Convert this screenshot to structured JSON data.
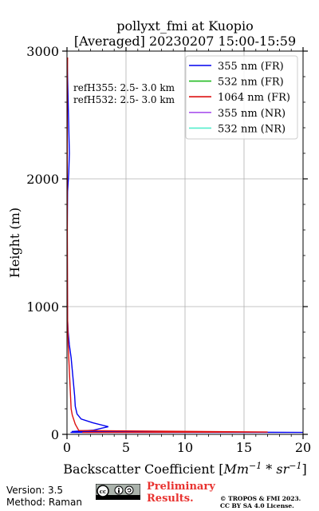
{
  "chart_data": {
    "type": "line",
    "title": "pollyxt_fmi at Kuopio",
    "subtitle": "[Averaged] 20230207 15:00-15:59",
    "xlabel": "Backscatter Coefficient [Mm⁻¹ * sr⁻¹]",
    "ylabel": "Height (m)",
    "xlim": [
      0,
      20
    ],
    "ylim": [
      0,
      3000
    ],
    "xticks": [
      "0",
      "5",
      "10",
      "15",
      "20"
    ],
    "yticks": [
      "0",
      "1000",
      "2000",
      "3000"
    ],
    "grid": true,
    "legend_position": "top-right",
    "annotations": [
      "refH355:  2.5- 3.0 km",
      "refH532:  2.5- 3.0 km"
    ],
    "series": [
      {
        "name": "355 nm (FR)",
        "color": "#0000ee",
        "points": [
          [
            0.3,
            15
          ],
          [
            20,
            15
          ],
          [
            0.4,
            22
          ],
          [
            2.2,
            32
          ],
          [
            3.5,
            60
          ],
          [
            2.2,
            90
          ],
          [
            1.2,
            120
          ],
          [
            0.85,
            160
          ],
          [
            0.7,
            220
          ],
          [
            0.65,
            300
          ],
          [
            0.55,
            400
          ],
          [
            0.45,
            500
          ],
          [
            0.35,
            600
          ],
          [
            0.2,
            700
          ],
          [
            0.1,
            800
          ],
          [
            0.05,
            900
          ],
          [
            0.03,
            1200
          ],
          [
            0.02,
            1600
          ],
          [
            0.05,
            1900
          ],
          [
            0.15,
            2050
          ],
          [
            0.2,
            2200
          ],
          [
            0.15,
            2400
          ],
          [
            0.1,
            2600
          ],
          [
            0.05,
            2800
          ],
          [
            0.02,
            2950
          ]
        ]
      },
      {
        "name": "532 nm (FR)",
        "color": "#22bb22",
        "points": []
      },
      {
        "name": "1064 nm (FR)",
        "color": "#dd1111",
        "points": [
          [
            1.3,
            15
          ],
          [
            17,
            18
          ],
          [
            1.0,
            30
          ],
          [
            0.7,
            80
          ],
          [
            0.45,
            150
          ],
          [
            0.35,
            200
          ],
          [
            0.3,
            300
          ],
          [
            0.2,
            500
          ],
          [
            0.1,
            700
          ],
          [
            0.05,
            900
          ],
          [
            0.03,
            1500
          ],
          [
            0.02,
            2000
          ],
          [
            0.02,
            2500
          ],
          [
            0.03,
            2800
          ],
          [
            0.05,
            2950
          ]
        ]
      },
      {
        "name": "355 nm (NR)",
        "color": "#aa55ee",
        "points": []
      },
      {
        "name": "532 nm (NR)",
        "color": "#55eecc",
        "points": []
      }
    ]
  },
  "footer": {
    "version": "Version: 3.5",
    "method": "Method: Raman",
    "preliminary_line1": "Preliminary",
    "preliminary_line2": "Results.",
    "copyright_line1": "© TROPOS & FMI 2023.",
    "copyright_line2": "CC BY SA 4.0 License."
  }
}
